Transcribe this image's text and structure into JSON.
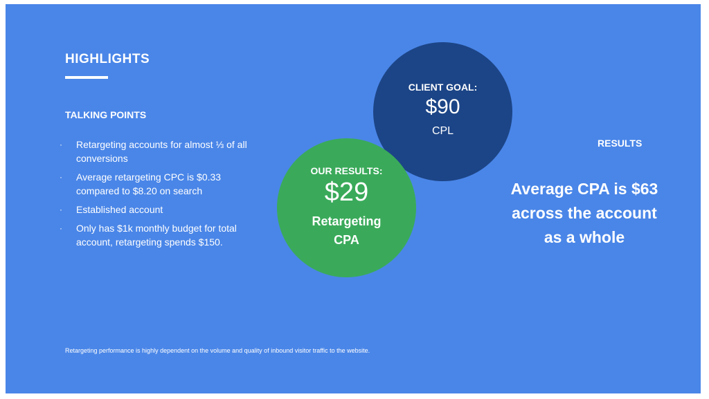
{
  "slide": {
    "heading": "HIGHLIGHTS",
    "talking_points": {
      "heading": "TALKING POINTS",
      "bullet_glyph": "·",
      "items": [
        "Retargeting accounts for almost ⅓ of all conversions",
        "Average retargeting CPC is $0.33 compared to $8.20 on search",
        "Established account",
        "Only has $1k monthly budget for total account, retargeting spends $150."
      ]
    },
    "client_goal": {
      "label": "CLIENT GOAL:",
      "value": "$90",
      "unit": "CPL"
    },
    "our_results": {
      "label": "OUR RESULTS:",
      "value": "$29",
      "unit": "Retargeting CPA"
    },
    "results": {
      "heading": "RESULTS",
      "statement": "Average CPA is $63 across the account as a whole"
    },
    "footnote": "Retargeting performance is highly dependent on the volume and quality of inbound visitor traffic to the website.",
    "colors": {
      "background": "#4a86e8",
      "client_goal_circle": "#1c4587",
      "our_results_circle": "#3aaa5a",
      "text": "#ffffff"
    }
  }
}
